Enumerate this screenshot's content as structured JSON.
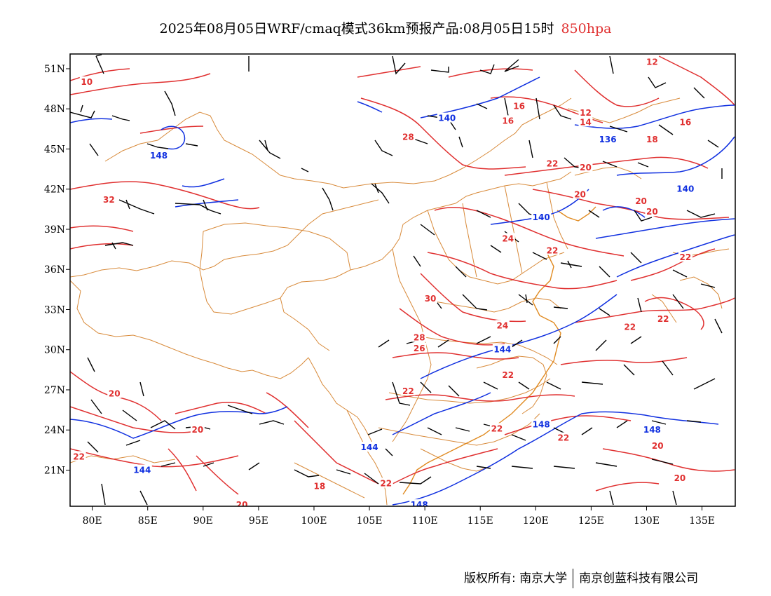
{
  "title": {
    "main": "2025年08月05日WRF/cmaq模式36km预报产品:08月05日15时",
    "level": "850hpa"
  },
  "axes": {
    "lat_labels": [
      "51N",
      "48N",
      "45N",
      "42N",
      "39N",
      "36N",
      "33N",
      "30N",
      "27N",
      "24N",
      "21N"
    ],
    "lon_labels": [
      "80E",
      "85E",
      "90E",
      "95E",
      "100E",
      "105E",
      "110E",
      "115E",
      "120E",
      "125E",
      "130E",
      "135E"
    ]
  },
  "contour_labels": {
    "temperature": [
      {
        "text": "10",
        "lon": 79.5,
        "lat": 50.0
      },
      {
        "text": "32",
        "lon": 81.5,
        "lat": 41.2
      },
      {
        "text": "28",
        "lon": 108.5,
        "lat": 45.9
      },
      {
        "text": "16",
        "lon": 118.5,
        "lat": 48.2
      },
      {
        "text": "16",
        "lon": 117.5,
        "lat": 47.1
      },
      {
        "text": "12",
        "lon": 124.5,
        "lat": 47.7
      },
      {
        "text": "14",
        "lon": 124.5,
        "lat": 47.0
      },
      {
        "text": "12",
        "lon": 130.5,
        "lat": 51.5
      },
      {
        "text": "16",
        "lon": 133.5,
        "lat": 47.0
      },
      {
        "text": "18",
        "lon": 130.5,
        "lat": 45.7
      },
      {
        "text": "22",
        "lon": 121.5,
        "lat": 43.9
      },
      {
        "text": "20",
        "lon": 124.5,
        "lat": 43.6
      },
      {
        "text": "20",
        "lon": 124.0,
        "lat": 41.6
      },
      {
        "text": "20",
        "lon": 129.5,
        "lat": 41.1
      },
      {
        "text": "20",
        "lon": 130.5,
        "lat": 40.3
      },
      {
        "text": "24",
        "lon": 117.5,
        "lat": 38.3
      },
      {
        "text": "22",
        "lon": 121.5,
        "lat": 37.4
      },
      {
        "text": "22",
        "lon": 133.5,
        "lat": 36.9
      },
      {
        "text": "30",
        "lon": 110.5,
        "lat": 33.8
      },
      {
        "text": "24",
        "lon": 117.0,
        "lat": 31.8
      },
      {
        "text": "22",
        "lon": 128.5,
        "lat": 31.7
      },
      {
        "text": "22",
        "lon": 131.5,
        "lat": 32.3
      },
      {
        "text": "28",
        "lon": 109.5,
        "lat": 30.9
      },
      {
        "text": "26",
        "lon": 109.5,
        "lat": 30.1
      },
      {
        "text": "22",
        "lon": 108.5,
        "lat": 26.9
      },
      {
        "text": "22",
        "lon": 117.5,
        "lat": 28.1
      },
      {
        "text": "22",
        "lon": 116.5,
        "lat": 24.1
      },
      {
        "text": "22",
        "lon": 122.5,
        "lat": 23.4
      },
      {
        "text": "20",
        "lon": 82.0,
        "lat": 26.7
      },
      {
        "text": "20",
        "lon": 89.5,
        "lat": 24.0
      },
      {
        "text": "22",
        "lon": 78.8,
        "lat": 22.0
      },
      {
        "text": "18",
        "lon": 100.5,
        "lat": 19.8
      },
      {
        "text": "22",
        "lon": 106.5,
        "lat": 20.0
      },
      {
        "text": "20",
        "lon": 93.5,
        "lat": 18.4
      },
      {
        "text": "20",
        "lon": 131.0,
        "lat": 22.8
      },
      {
        "text": "20",
        "lon": 133.0,
        "lat": 20.4
      }
    ],
    "height": [
      {
        "text": "148",
        "lon": 86.0,
        "lat": 44.5
      },
      {
        "text": "140",
        "lon": 112.0,
        "lat": 47.3
      },
      {
        "text": "136",
        "lon": 126.5,
        "lat": 45.7
      },
      {
        "text": "140",
        "lon": 133.5,
        "lat": 42.0
      },
      {
        "text": "140",
        "lon": 120.5,
        "lat": 39.9
      },
      {
        "text": "144",
        "lon": 117.0,
        "lat": 30.0
      },
      {
        "text": "148",
        "lon": 120.5,
        "lat": 24.4
      },
      {
        "text": "148",
        "lon": 130.5,
        "lat": 24.0
      },
      {
        "text": "144",
        "lon": 105.0,
        "lat": 22.7
      },
      {
        "text": "144",
        "lon": 84.5,
        "lat": 21.0
      },
      {
        "text": "148",
        "lon": 109.5,
        "lat": 18.4
      }
    ]
  },
  "footer": {
    "left": "版权所有: 南京大学",
    "right": "南京创蓝科技有限公司"
  },
  "colors": {
    "temperature_contour": "#e03030",
    "height_contour": "#1030e0",
    "boundary": "#d88a3a",
    "wind_barb": "#000000"
  }
}
